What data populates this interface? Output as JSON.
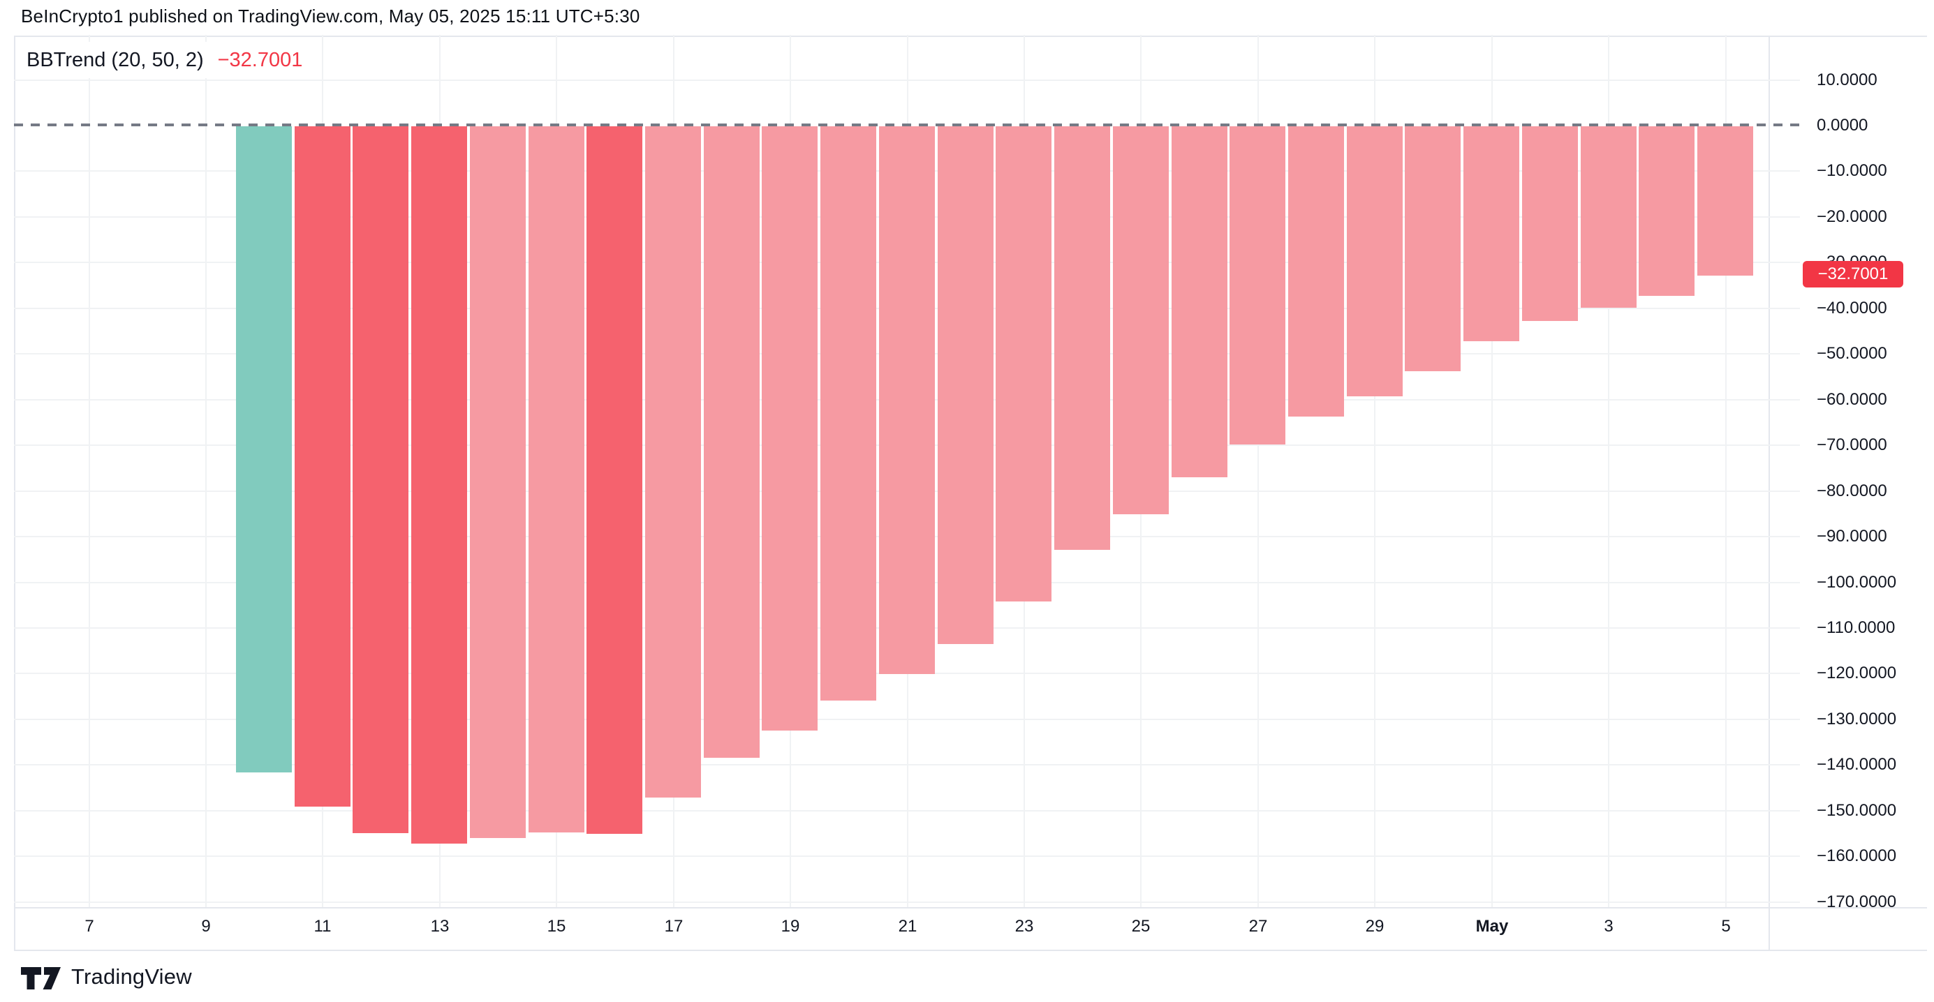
{
  "header": {
    "attribution": "BeInCrypto1 published on TradingView.com, May 05, 2025 15:11 UTC+5:30"
  },
  "legend": {
    "indicator": "BBTrend (20, 50, 2)",
    "value": "−32.7001"
  },
  "price_label": {
    "value": "−32.7001",
    "color": "#F23645"
  },
  "footer": {
    "brand": "TradingView"
  },
  "colors": {
    "teal": "#81CBBE",
    "red": "#F5626E",
    "pink": "#F69AA2",
    "badge_red": "#F23645",
    "legend_value_red": "#F23645",
    "text_dark": "#131722",
    "gridline": "#F0F2F4",
    "border": "#E4E7ED",
    "zero_dash_gray": "#757A85"
  },
  "chart_data": {
    "type": "bar",
    "title": "BBTrend (20, 50, 2)",
    "x": [
      "Apr 10",
      "Apr 11",
      "Apr 12",
      "Apr 13",
      "Apr 14",
      "Apr 15",
      "Apr 16",
      "Apr 17",
      "Apr 18",
      "Apr 19",
      "Apr 20",
      "Apr 21",
      "Apr 22",
      "Apr 23",
      "Apr 24",
      "Apr 25",
      "Apr 26",
      "Apr 27",
      "Apr 28",
      "Apr 29",
      "Apr 30",
      "May 1",
      "May 2",
      "May 3",
      "May 4",
      "May 5"
    ],
    "values": [
      -141.5,
      -149.0,
      -154.8,
      -157.1,
      -155.9,
      -154.6,
      -155.0,
      -147.0,
      -138.3,
      -132.3,
      -125.7,
      -120.0,
      -113.3,
      -104.1,
      -92.8,
      -84.9,
      -76.9,
      -69.7,
      -63.6,
      -59.2,
      -53.7,
      -47.0,
      -42.6,
      -39.8,
      -37.2,
      -32.7001
    ],
    "bar_color_roles": [
      "teal",
      "red",
      "red",
      "red",
      "pink",
      "pink",
      "red",
      "pink",
      "pink",
      "pink",
      "pink",
      "pink",
      "pink",
      "pink",
      "pink",
      "pink",
      "pink",
      "pink",
      "pink",
      "pink",
      "pink",
      "pink",
      "pink",
      "pink",
      "pink",
      "pink"
    ],
    "last_value": -32.7001,
    "ylim": [
      -175,
      15
    ],
    "grid": true,
    "zero_line_style": "dashed",
    "legend_position": "top-left",
    "y_axis_side": "right",
    "y_ticks": [
      10,
      0,
      -10,
      -20,
      -30,
      -40,
      -50,
      -60,
      -70,
      -80,
      -90,
      -100,
      -110,
      -120,
      -130,
      -140,
      -150,
      -160,
      -170
    ],
    "y_tick_labels": [
      "10.0000",
      "0.0000",
      "−10.0000",
      "−20.0000",
      "−30.0000",
      "−40.0000",
      "−50.0000",
      "−60.0000",
      "−70.0000",
      "−80.0000",
      "−90.0000",
      "−100.0000",
      "−110.0000",
      "−120.0000",
      "−130.0000",
      "−140.0000",
      "−150.0000",
      "−160.0000",
      "−170.0000"
    ],
    "x_tick_labels": [
      "7",
      "9",
      "11",
      "13",
      "15",
      "17",
      "19",
      "21",
      "23",
      "25",
      "27",
      "29",
      "May",
      "3",
      "5"
    ],
    "x_tick_bold_index": 12
  }
}
